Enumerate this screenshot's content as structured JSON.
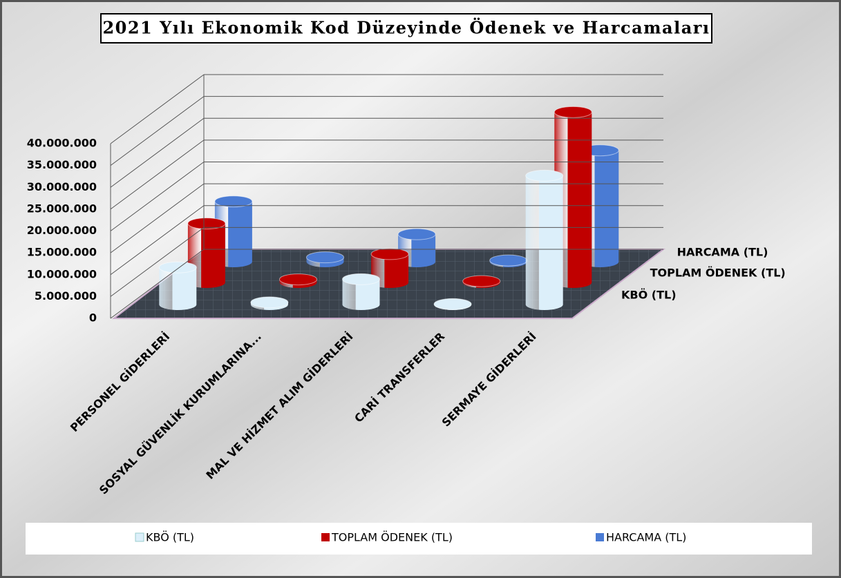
{
  "chart_data": {
    "type": "bar3d",
    "title": "2021 Yılı Ekonomik Kod Düzeyinde Ödenek ve Harcamaları",
    "categories": [
      "PERSONEL GİDERLERİ",
      "SOSYAL GÜVENLİK KURUMLARINA...",
      "MAL VE HİZMET ALIM GİDERLERİ",
      "CARİ TRANSFERLER",
      "SERMAYE GİDERLERİ"
    ],
    "series": [
      {
        "name": "KBÖ (TL)",
        "color": "#dcefFa",
        "values": [
          8500000,
          500000,
          5800000,
          100000,
          29500000
        ]
      },
      {
        "name": "TOPLAM ÖDENEK (TL)",
        "color": "#c00000",
        "values": [
          13500000,
          700000,
          6500000,
          300000,
          39000000
        ]
      },
      {
        "name": "HARCAMA (TL)",
        "color": "#4a7bd4",
        "values": [
          13800000,
          1000000,
          6300000,
          300000,
          25500000
        ]
      }
    ],
    "ylim": [
      0,
      40000000
    ],
    "yticks": [
      0,
      {
        "value": 5000000,
        "label": "5.000.000"
      },
      {
        "value": 10000000,
        "label": "10.000.000"
      },
      {
        "value": 15000000,
        "label": "15.000.000"
      },
      {
        "value": 20000000,
        "label": "20.000.000"
      },
      {
        "value": 25000000,
        "label": "25.000.000"
      },
      {
        "value": 30000000,
        "label": "30.000.000"
      },
      {
        "value": 35000000,
        "label": "35.000.000"
      },
      {
        "value": 40000000,
        "label": "40.000.000"
      }
    ],
    "grid": true,
    "legend": "bottom"
  }
}
